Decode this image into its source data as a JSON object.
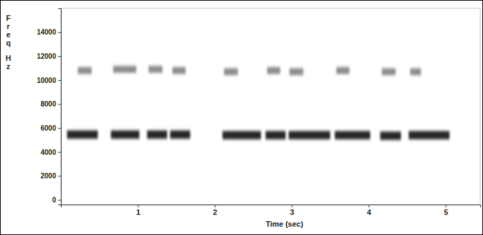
{
  "chart_data": {
    "type": "spectrogram",
    "x_label": "Time (sec)",
    "y_label": "Freq Hz",
    "xlim": [
      0,
      5.45
    ],
    "xticks": [
      1,
      2,
      3,
      4,
      5
    ],
    "ylim": [
      -400,
      16000
    ],
    "yticks": [
      0,
      2000,
      4000,
      6000,
      8000,
      10000,
      12000,
      14000
    ],
    "color": "#000000",
    "grid": false,
    "events": [
      {
        "start": 0.08,
        "end": 0.48,
        "freq": 5450
      },
      {
        "start": 0.65,
        "end": 1.02,
        "freq": 5450
      },
      {
        "start": 1.12,
        "end": 1.38,
        "freq": 5450
      },
      {
        "start": 1.42,
        "end": 1.68,
        "freq": 5450
      },
      {
        "start": 2.1,
        "end": 2.6,
        "freq": 5400
      },
      {
        "start": 2.66,
        "end": 2.92,
        "freq": 5400
      },
      {
        "start": 2.96,
        "end": 3.5,
        "freq": 5400
      },
      {
        "start": 3.56,
        "end": 4.02,
        "freq": 5400
      },
      {
        "start": 4.15,
        "end": 4.42,
        "freq": 5350
      },
      {
        "start": 4.52,
        "end": 5.05,
        "freq": 5400
      }
    ],
    "harmonics": [
      {
        "start": 0.22,
        "end": 0.4,
        "freq": 10800
      },
      {
        "start": 0.68,
        "end": 0.98,
        "freq": 10900
      },
      {
        "start": 1.14,
        "end": 1.32,
        "freq": 10900
      },
      {
        "start": 1.45,
        "end": 1.62,
        "freq": 10800
      },
      {
        "start": 2.12,
        "end": 2.3,
        "freq": 10700
      },
      {
        "start": 2.68,
        "end": 2.85,
        "freq": 10800
      },
      {
        "start": 2.97,
        "end": 3.15,
        "freq": 10700
      },
      {
        "start": 3.58,
        "end": 3.75,
        "freq": 10800
      },
      {
        "start": 4.17,
        "end": 4.35,
        "freq": 10700
      },
      {
        "start": 4.54,
        "end": 4.68,
        "freq": 10700
      }
    ]
  }
}
